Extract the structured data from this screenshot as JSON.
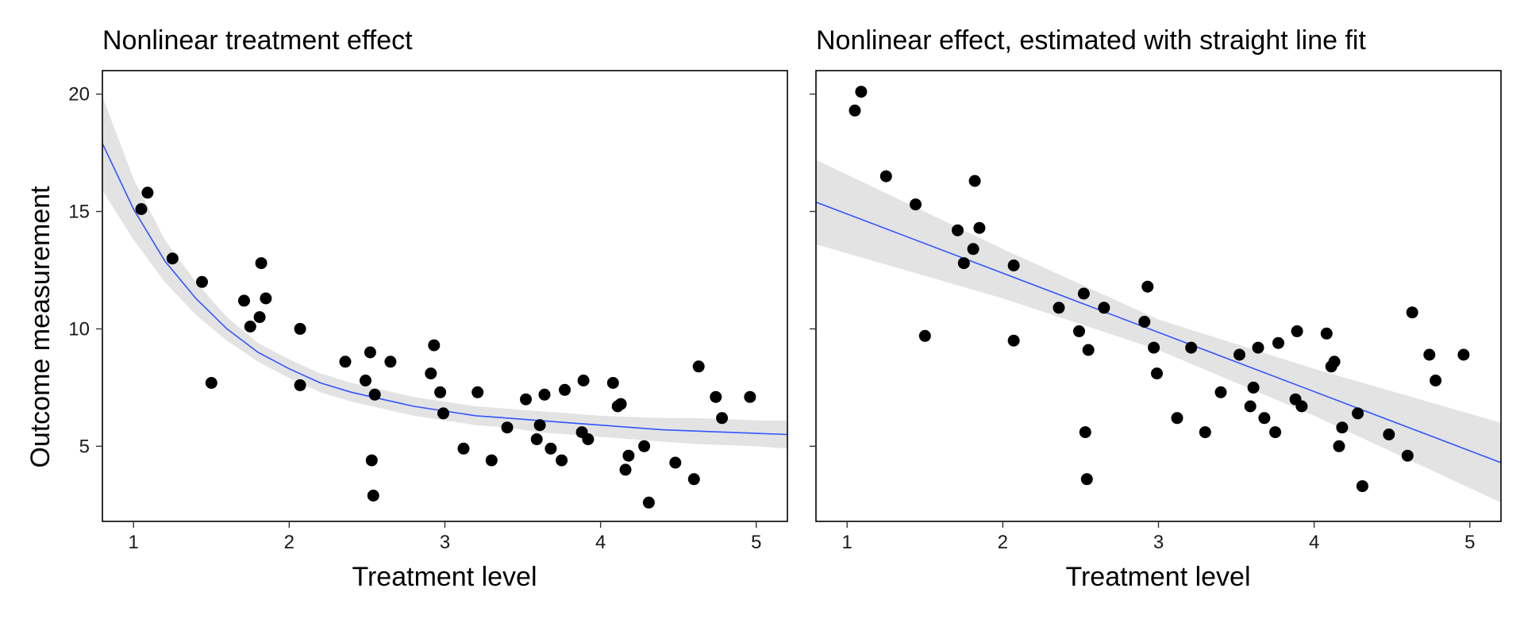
{
  "figure": {
    "ylabel": "Outcome measurement"
  },
  "chart_data": [
    {
      "type": "scatter",
      "title": "Nonlinear treatment effect",
      "xlabel": "Treatment level",
      "ylabel": "Outcome measurement",
      "xlim": [
        0.8,
        5.2
      ],
      "ylim": [
        1.8,
        21
      ],
      "x_ticks": [
        1,
        2,
        3,
        4,
        5
      ],
      "y_ticks": [
        5,
        10,
        15,
        20
      ],
      "grid": false,
      "legend": "none",
      "point_color": "#000000",
      "fit_color": "#3355ff",
      "band_color": "#e3e3e3",
      "points": [
        [
          1.05,
          15.1
        ],
        [
          1.09,
          15.8
        ],
        [
          1.25,
          13.0
        ],
        [
          1.44,
          12.0
        ],
        [
          1.5,
          7.7
        ],
        [
          1.71,
          11.2
        ],
        [
          1.75,
          10.1
        ],
        [
          1.81,
          10.5
        ],
        [
          1.82,
          12.8
        ],
        [
          1.85,
          11.3
        ],
        [
          2.07,
          10.0
        ],
        [
          2.07,
          7.6
        ],
        [
          2.36,
          8.6
        ],
        [
          2.49,
          7.8
        ],
        [
          2.52,
          9.0
        ],
        [
          2.53,
          4.4
        ],
        [
          2.54,
          2.9
        ],
        [
          2.55,
          7.2
        ],
        [
          2.65,
          8.6
        ],
        [
          2.91,
          8.1
        ],
        [
          2.93,
          9.3
        ],
        [
          2.97,
          7.3
        ],
        [
          2.99,
          6.4
        ],
        [
          3.12,
          4.9
        ],
        [
          3.21,
          7.3
        ],
        [
          3.3,
          4.4
        ],
        [
          3.4,
          5.8
        ],
        [
          3.52,
          7.0
        ],
        [
          3.59,
          5.3
        ],
        [
          3.61,
          5.9
        ],
        [
          3.64,
          7.2
        ],
        [
          3.68,
          4.9
        ],
        [
          3.75,
          4.4
        ],
        [
          3.77,
          7.4
        ],
        [
          3.88,
          5.6
        ],
        [
          3.89,
          7.8
        ],
        [
          3.92,
          5.3
        ],
        [
          4.08,
          7.7
        ],
        [
          4.11,
          6.7
        ],
        [
          4.13,
          6.8
        ],
        [
          4.16,
          4.0
        ],
        [
          4.18,
          4.6
        ],
        [
          4.28,
          5.0
        ],
        [
          4.31,
          2.6
        ],
        [
          4.48,
          4.3
        ],
        [
          4.6,
          3.6
        ],
        [
          4.63,
          8.4
        ],
        [
          4.74,
          7.1
        ],
        [
          4.78,
          6.2
        ],
        [
          4.96,
          7.1
        ]
      ],
      "fit": {
        "model": "nonlinear",
        "curve": [
          [
            0.8,
            17.9
          ],
          [
            1.0,
            15.1
          ],
          [
            1.2,
            12.9
          ],
          [
            1.4,
            11.3
          ],
          [
            1.6,
            10.0
          ],
          [
            1.8,
            9.0
          ],
          [
            2.0,
            8.3
          ],
          [
            2.2,
            7.7
          ],
          [
            2.4,
            7.3
          ],
          [
            2.6,
            7.0
          ],
          [
            2.8,
            6.7
          ],
          [
            3.0,
            6.5
          ],
          [
            3.2,
            6.3
          ],
          [
            3.4,
            6.2
          ],
          [
            3.6,
            6.1
          ],
          [
            3.8,
            6.0
          ],
          [
            4.0,
            5.9
          ],
          [
            4.2,
            5.8
          ],
          [
            4.4,
            5.7
          ],
          [
            4.6,
            5.65
          ],
          [
            4.8,
            5.6
          ],
          [
            5.0,
            5.55
          ],
          [
            5.2,
            5.5
          ]
        ],
        "band_lower": [
          [
            0.8,
            15.9
          ],
          [
            1.0,
            13.8
          ],
          [
            1.2,
            12.0
          ],
          [
            1.4,
            10.6
          ],
          [
            1.6,
            9.5
          ],
          [
            1.8,
            8.6
          ],
          [
            2.0,
            7.9
          ],
          [
            2.2,
            7.3
          ],
          [
            2.4,
            6.9
          ],
          [
            2.6,
            6.6
          ],
          [
            2.8,
            6.3
          ],
          [
            3.0,
            6.1
          ],
          [
            3.2,
            5.9
          ],
          [
            3.4,
            5.8
          ],
          [
            3.6,
            5.6
          ],
          [
            3.8,
            5.5
          ],
          [
            4.0,
            5.4
          ],
          [
            4.2,
            5.3
          ],
          [
            4.4,
            5.2
          ],
          [
            4.6,
            5.1
          ],
          [
            4.8,
            5.05
          ],
          [
            5.0,
            5.0
          ],
          [
            5.2,
            4.9
          ]
        ],
        "band_upper": [
          [
            0.8,
            19.9
          ],
          [
            1.0,
            16.4
          ],
          [
            1.2,
            13.8
          ],
          [
            1.4,
            12.0
          ],
          [
            1.6,
            10.5
          ],
          [
            1.8,
            9.4
          ],
          [
            2.0,
            8.7
          ],
          [
            2.2,
            8.1
          ],
          [
            2.4,
            7.7
          ],
          [
            2.6,
            7.4
          ],
          [
            2.8,
            7.1
          ],
          [
            3.0,
            6.9
          ],
          [
            3.2,
            6.7
          ],
          [
            3.4,
            6.6
          ],
          [
            3.6,
            6.5
          ],
          [
            3.8,
            6.4
          ],
          [
            4.0,
            6.3
          ],
          [
            4.2,
            6.25
          ],
          [
            4.4,
            6.2
          ],
          [
            4.6,
            6.2
          ],
          [
            4.8,
            6.15
          ],
          [
            5.0,
            6.1
          ],
          [
            5.2,
            6.1
          ]
        ]
      }
    },
    {
      "type": "scatter",
      "title": "Nonlinear effect, estimated with straight line fit",
      "xlabel": "Treatment level",
      "xlim": [
        0.8,
        5.2
      ],
      "ylim": [
        1.8,
        21
      ],
      "x_ticks": [
        1,
        2,
        3,
        4,
        5
      ],
      "y_ticks": [
        5,
        10,
        15,
        20
      ],
      "show_y_tick_labels": false,
      "grid": false,
      "legend": "none",
      "point_color": "#000000",
      "fit_color": "#3355ff",
      "band_color": "#e3e3e3",
      "points": [
        [
          1.05,
          19.3
        ],
        [
          1.09,
          20.1
        ],
        [
          1.25,
          16.5
        ],
        [
          1.44,
          15.3
        ],
        [
          1.5,
          9.7
        ],
        [
          1.71,
          14.2
        ],
        [
          1.75,
          12.8
        ],
        [
          1.81,
          13.4
        ],
        [
          1.82,
          16.3
        ],
        [
          1.85,
          14.3
        ],
        [
          2.07,
          12.7
        ],
        [
          2.07,
          9.5
        ],
        [
          2.36,
          10.9
        ],
        [
          2.49,
          9.9
        ],
        [
          2.52,
          11.5
        ],
        [
          2.53,
          5.6
        ],
        [
          2.54,
          3.6
        ],
        [
          2.55,
          9.1
        ],
        [
          2.65,
          10.9
        ],
        [
          2.91,
          10.3
        ],
        [
          2.93,
          11.8
        ],
        [
          2.97,
          9.2
        ],
        [
          2.99,
          8.1
        ],
        [
          3.12,
          6.2
        ],
        [
          3.21,
          9.2
        ],
        [
          3.3,
          5.6
        ],
        [
          3.4,
          7.3
        ],
        [
          3.52,
          8.9
        ],
        [
          3.59,
          6.7
        ],
        [
          3.61,
          7.5
        ],
        [
          3.64,
          9.2
        ],
        [
          3.68,
          6.2
        ],
        [
          3.75,
          5.6
        ],
        [
          3.77,
          9.4
        ],
        [
          3.88,
          7.0
        ],
        [
          3.89,
          9.9
        ],
        [
          3.92,
          6.7
        ],
        [
          4.08,
          9.8
        ],
        [
          4.11,
          8.4
        ],
        [
          4.13,
          8.6
        ],
        [
          4.16,
          5.0
        ],
        [
          4.18,
          5.8
        ],
        [
          4.28,
          6.4
        ],
        [
          4.31,
          3.3
        ],
        [
          4.48,
          5.5
        ],
        [
          4.6,
          4.6
        ],
        [
          4.63,
          10.7
        ],
        [
          4.74,
          8.9
        ],
        [
          4.78,
          7.8
        ],
        [
          4.96,
          8.9
        ]
      ],
      "fit": {
        "model": "linear",
        "curve": [
          [
            0.8,
            15.4
          ],
          [
            5.2,
            4.3
          ]
        ],
        "band_lower": [
          [
            0.8,
            13.6
          ],
          [
            2.0,
            11.3
          ],
          [
            3.0,
            9.1
          ],
          [
            4.0,
            6.3
          ],
          [
            5.2,
            2.6
          ]
        ],
        "band_upper": [
          [
            0.8,
            17.2
          ],
          [
            2.0,
            13.4
          ],
          [
            3.0,
            10.4
          ],
          [
            4.0,
            8.3
          ],
          [
            5.2,
            6.0
          ]
        ]
      }
    }
  ]
}
